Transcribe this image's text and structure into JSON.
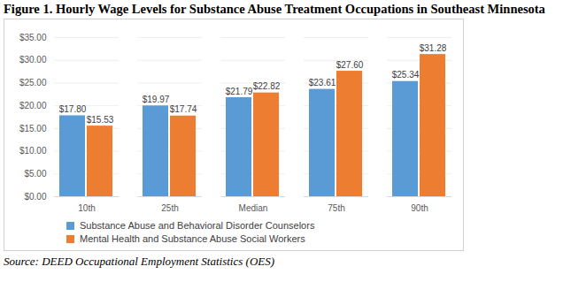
{
  "chart_data": {
    "type": "bar",
    "title": "Figure 1. Hourly Wage Levels for Substance Abuse Treatment Occupations in Southeast Minnesota",
    "caption": "Source: DEED Occupational Employment Statistics (OES)",
    "categories": [
      "10th",
      "25th",
      "Median",
      "75th",
      "90th"
    ],
    "series": [
      {
        "name": "Substance Abuse and Behavioral Disorder Counselors",
        "color": "#5B9BD5",
        "values": [
          17.8,
          19.97,
          21.79,
          23.61,
          25.34
        ],
        "value_labels": [
          "$17.80",
          "$19.97",
          "$21.79",
          "$23.61",
          "$25.34"
        ]
      },
      {
        "name": "Mental Health and Substance Abuse Social Workers",
        "color": "#ED7D31",
        "values": [
          15.53,
          17.74,
          22.82,
          27.6,
          31.28
        ],
        "value_labels": [
          "$15.53",
          "$17.74",
          "$22.82",
          "$27.60",
          "$31.28"
        ]
      }
    ],
    "ylim": [
      0,
      35
    ],
    "yticks": [
      {
        "value": 0,
        "label": "$0.00"
      },
      {
        "value": 5,
        "label": "$5.00"
      },
      {
        "value": 10,
        "label": "$10.00"
      },
      {
        "value": 15,
        "label": "$15.00"
      },
      {
        "value": 20,
        "label": "$20.00"
      },
      {
        "value": 25,
        "label": "$25.00"
      },
      {
        "value": 30,
        "label": "$30.00"
      },
      {
        "value": 35,
        "label": "$35.00"
      }
    ],
    "grid": true,
    "data_labels": true,
    "legend": "bottom"
  }
}
